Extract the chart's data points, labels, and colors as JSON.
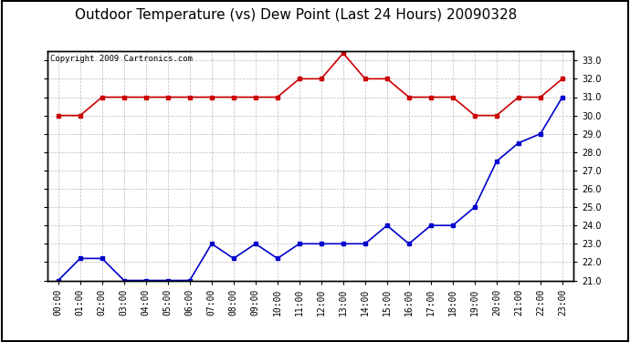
{
  "title": "Outdoor Temperature (vs) Dew Point (Last 24 Hours) 20090328",
  "copyright_text": "Copyright 2009 Cartronics.com",
  "x_labels": [
    "00:00",
    "01:00",
    "02:00",
    "03:00",
    "04:00",
    "05:00",
    "06:00",
    "07:00",
    "08:00",
    "09:00",
    "10:00",
    "11:00",
    "12:00",
    "13:00",
    "14:00",
    "15:00",
    "16:00",
    "17:00",
    "18:00",
    "19:00",
    "20:00",
    "21:00",
    "22:00",
    "23:00"
  ],
  "temp_data": [
    21.0,
    22.2,
    22.2,
    21.0,
    21.0,
    21.0,
    21.0,
    23.0,
    22.2,
    23.0,
    22.2,
    23.0,
    23.0,
    23.0,
    23.0,
    24.0,
    23.0,
    24.0,
    24.0,
    25.0,
    27.5,
    28.5,
    29.0,
    31.0
  ],
  "dew_data": [
    30.0,
    30.0,
    31.0,
    31.0,
    31.0,
    31.0,
    31.0,
    31.0,
    31.0,
    31.0,
    31.0,
    32.0,
    32.0,
    33.4,
    32.0,
    32.0,
    31.0,
    31.0,
    31.0,
    30.0,
    30.0,
    31.0,
    31.0,
    32.0
  ],
  "temp_color": "#0000cc",
  "dew_color": "#cc0000",
  "ylim": [
    21.0,
    33.5
  ],
  "yticks": [
    21.0,
    22.0,
    23.0,
    24.0,
    25.0,
    26.0,
    27.0,
    28.0,
    29.0,
    30.0,
    31.0,
    32.0,
    33.0
  ],
  "outer_bg": "#ffffff",
  "plot_bg_color": "#ffffff",
  "grid_color": "#bbbbbb",
  "title_fontsize": 11,
  "copyright_fontsize": 6.5,
  "tick_fontsize": 7,
  "marker": "s",
  "marker_size": 3,
  "line_width": 1.2
}
